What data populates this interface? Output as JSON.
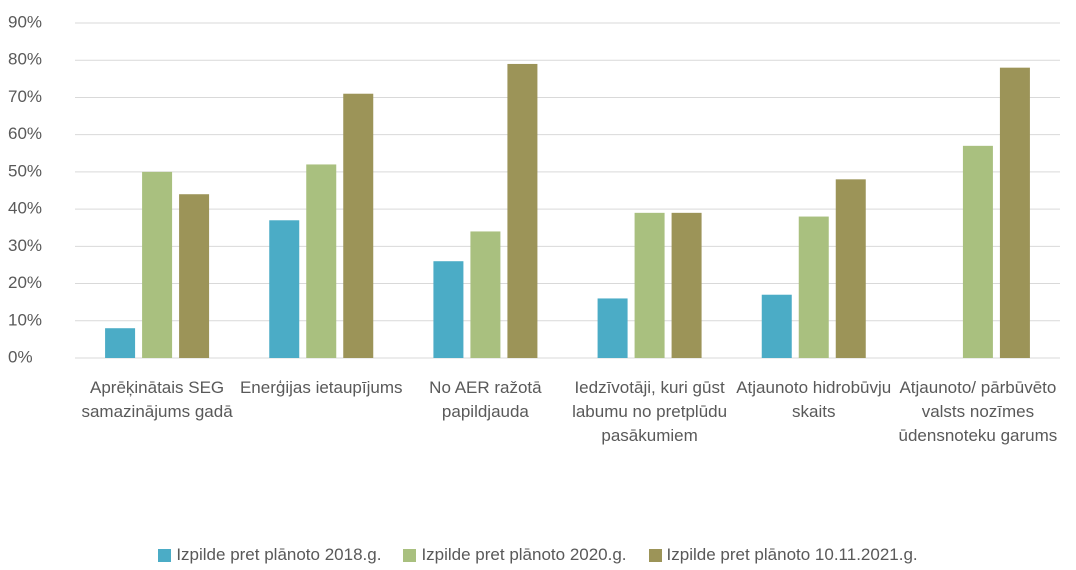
{
  "chart_data": {
    "type": "bar",
    "categories": [
      "Aprēķinātais SEG samazinājums gadā",
      "Enerģijas ietaupījums",
      "No AER ražotā papildjauda",
      "Iedzīvotāji, kuri gūst labumu no pretplūdu pasākumiem",
      "Atjaunoto hidrobūvju skaits",
      "Atjaunoto/ pārbūvēto valsts nozīmes ūdensnoteku garums"
    ],
    "series": [
      {
        "name": "Izpilde pret plānoto 2018.g.",
        "color": "#4bacc6",
        "values": [
          8,
          37,
          26,
          16,
          17,
          null
        ]
      },
      {
        "name": "Izpilde pret plānoto 2020.g.",
        "color": "#a9c07f",
        "values": [
          50,
          52,
          34,
          39,
          38,
          57
        ]
      },
      {
        "name": "Izpilde pret plānoto 10.11.2021.g.",
        "color": "#9c9458",
        "values": [
          44,
          71,
          79,
          39,
          48,
          78
        ]
      }
    ],
    "ylim": [
      0,
      90
    ],
    "yticks": [
      {
        "value": 0,
        "label": "0%"
      },
      {
        "value": 10,
        "label": "10%"
      },
      {
        "value": 20,
        "label": "20%"
      },
      {
        "value": 30,
        "label": "30%"
      },
      {
        "value": 40,
        "label": "40%"
      },
      {
        "value": 50,
        "label": "50%"
      },
      {
        "value": 60,
        "label": "60%"
      },
      {
        "value": 70,
        "label": "70%"
      },
      {
        "value": 80,
        "label": "80%"
      },
      {
        "value": 90,
        "label": "90%"
      }
    ],
    "grid": true,
    "legend": "bottom"
  }
}
